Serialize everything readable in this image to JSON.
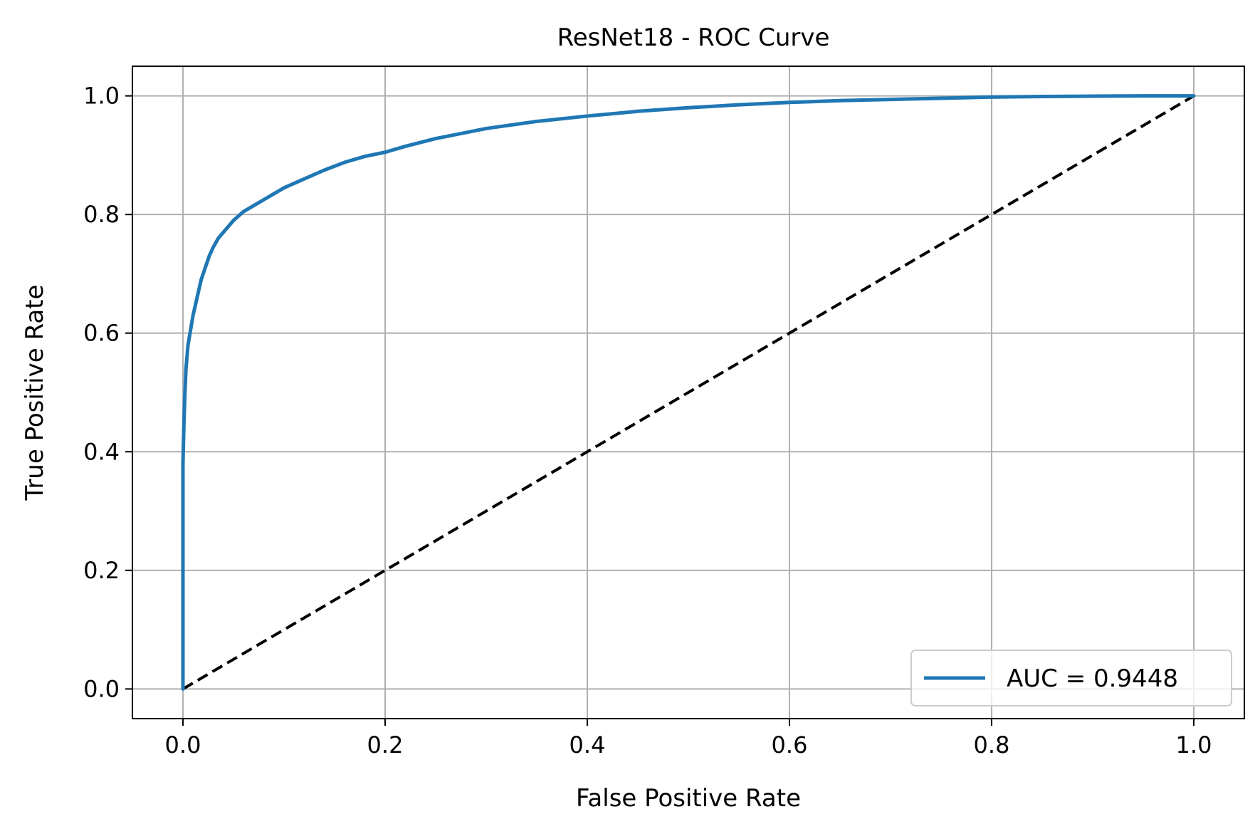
{
  "chart_data": {
    "type": "line",
    "title": "ResNet18 - ROC Curve",
    "xlabel": "False Positive Rate",
    "ylabel": "True Positive Rate",
    "xlim": [
      -0.05,
      1.05
    ],
    "ylim": [
      -0.05,
      1.05
    ],
    "xticks": [
      0.0,
      0.2,
      0.4,
      0.6,
      0.8,
      1.0
    ],
    "yticks": [
      0.0,
      0.2,
      0.4,
      0.6,
      0.8,
      1.0
    ],
    "xtick_labels": [
      "0.0",
      "0.2",
      "0.4",
      "0.6",
      "0.8",
      "1.0"
    ],
    "ytick_labels": [
      "0.0",
      "0.2",
      "0.4",
      "0.6",
      "0.8",
      "1.0"
    ],
    "grid": true,
    "legend_position": "lower-right",
    "series": [
      {
        "name": "AUC = 0.9448",
        "color": "#1f77b4",
        "style": "solid",
        "x": [
          0.0,
          0.0,
          0.0,
          0.0,
          0.001,
          0.002,
          0.003,
          0.005,
          0.008,
          0.01,
          0.014,
          0.018,
          0.022,
          0.026,
          0.03,
          0.035,
          0.04,
          0.045,
          0.05,
          0.06,
          0.07,
          0.08,
          0.09,
          0.1,
          0.12,
          0.14,
          0.16,
          0.18,
          0.2,
          0.22,
          0.25,
          0.3,
          0.35,
          0.4,
          0.45,
          0.5,
          0.55,
          0.6,
          0.65,
          0.7,
          0.75,
          0.8,
          0.85,
          0.9,
          0.95,
          1.0
        ],
        "y": [
          0.0,
          0.2,
          0.3,
          0.38,
          0.45,
          0.5,
          0.54,
          0.58,
          0.61,
          0.63,
          0.66,
          0.69,
          0.71,
          0.73,
          0.745,
          0.76,
          0.77,
          0.78,
          0.79,
          0.805,
          0.815,
          0.825,
          0.835,
          0.845,
          0.86,
          0.875,
          0.888,
          0.898,
          0.905,
          0.915,
          0.928,
          0.945,
          0.957,
          0.966,
          0.974,
          0.98,
          0.985,
          0.989,
          0.992,
          0.994,
          0.996,
          0.998,
          0.999,
          0.9995,
          1.0,
          1.0
        ]
      },
      {
        "name": "",
        "color": "#000000",
        "style": "dashed",
        "x": [
          0.0,
          1.0
        ],
        "y": [
          0.0,
          1.0
        ]
      }
    ]
  }
}
